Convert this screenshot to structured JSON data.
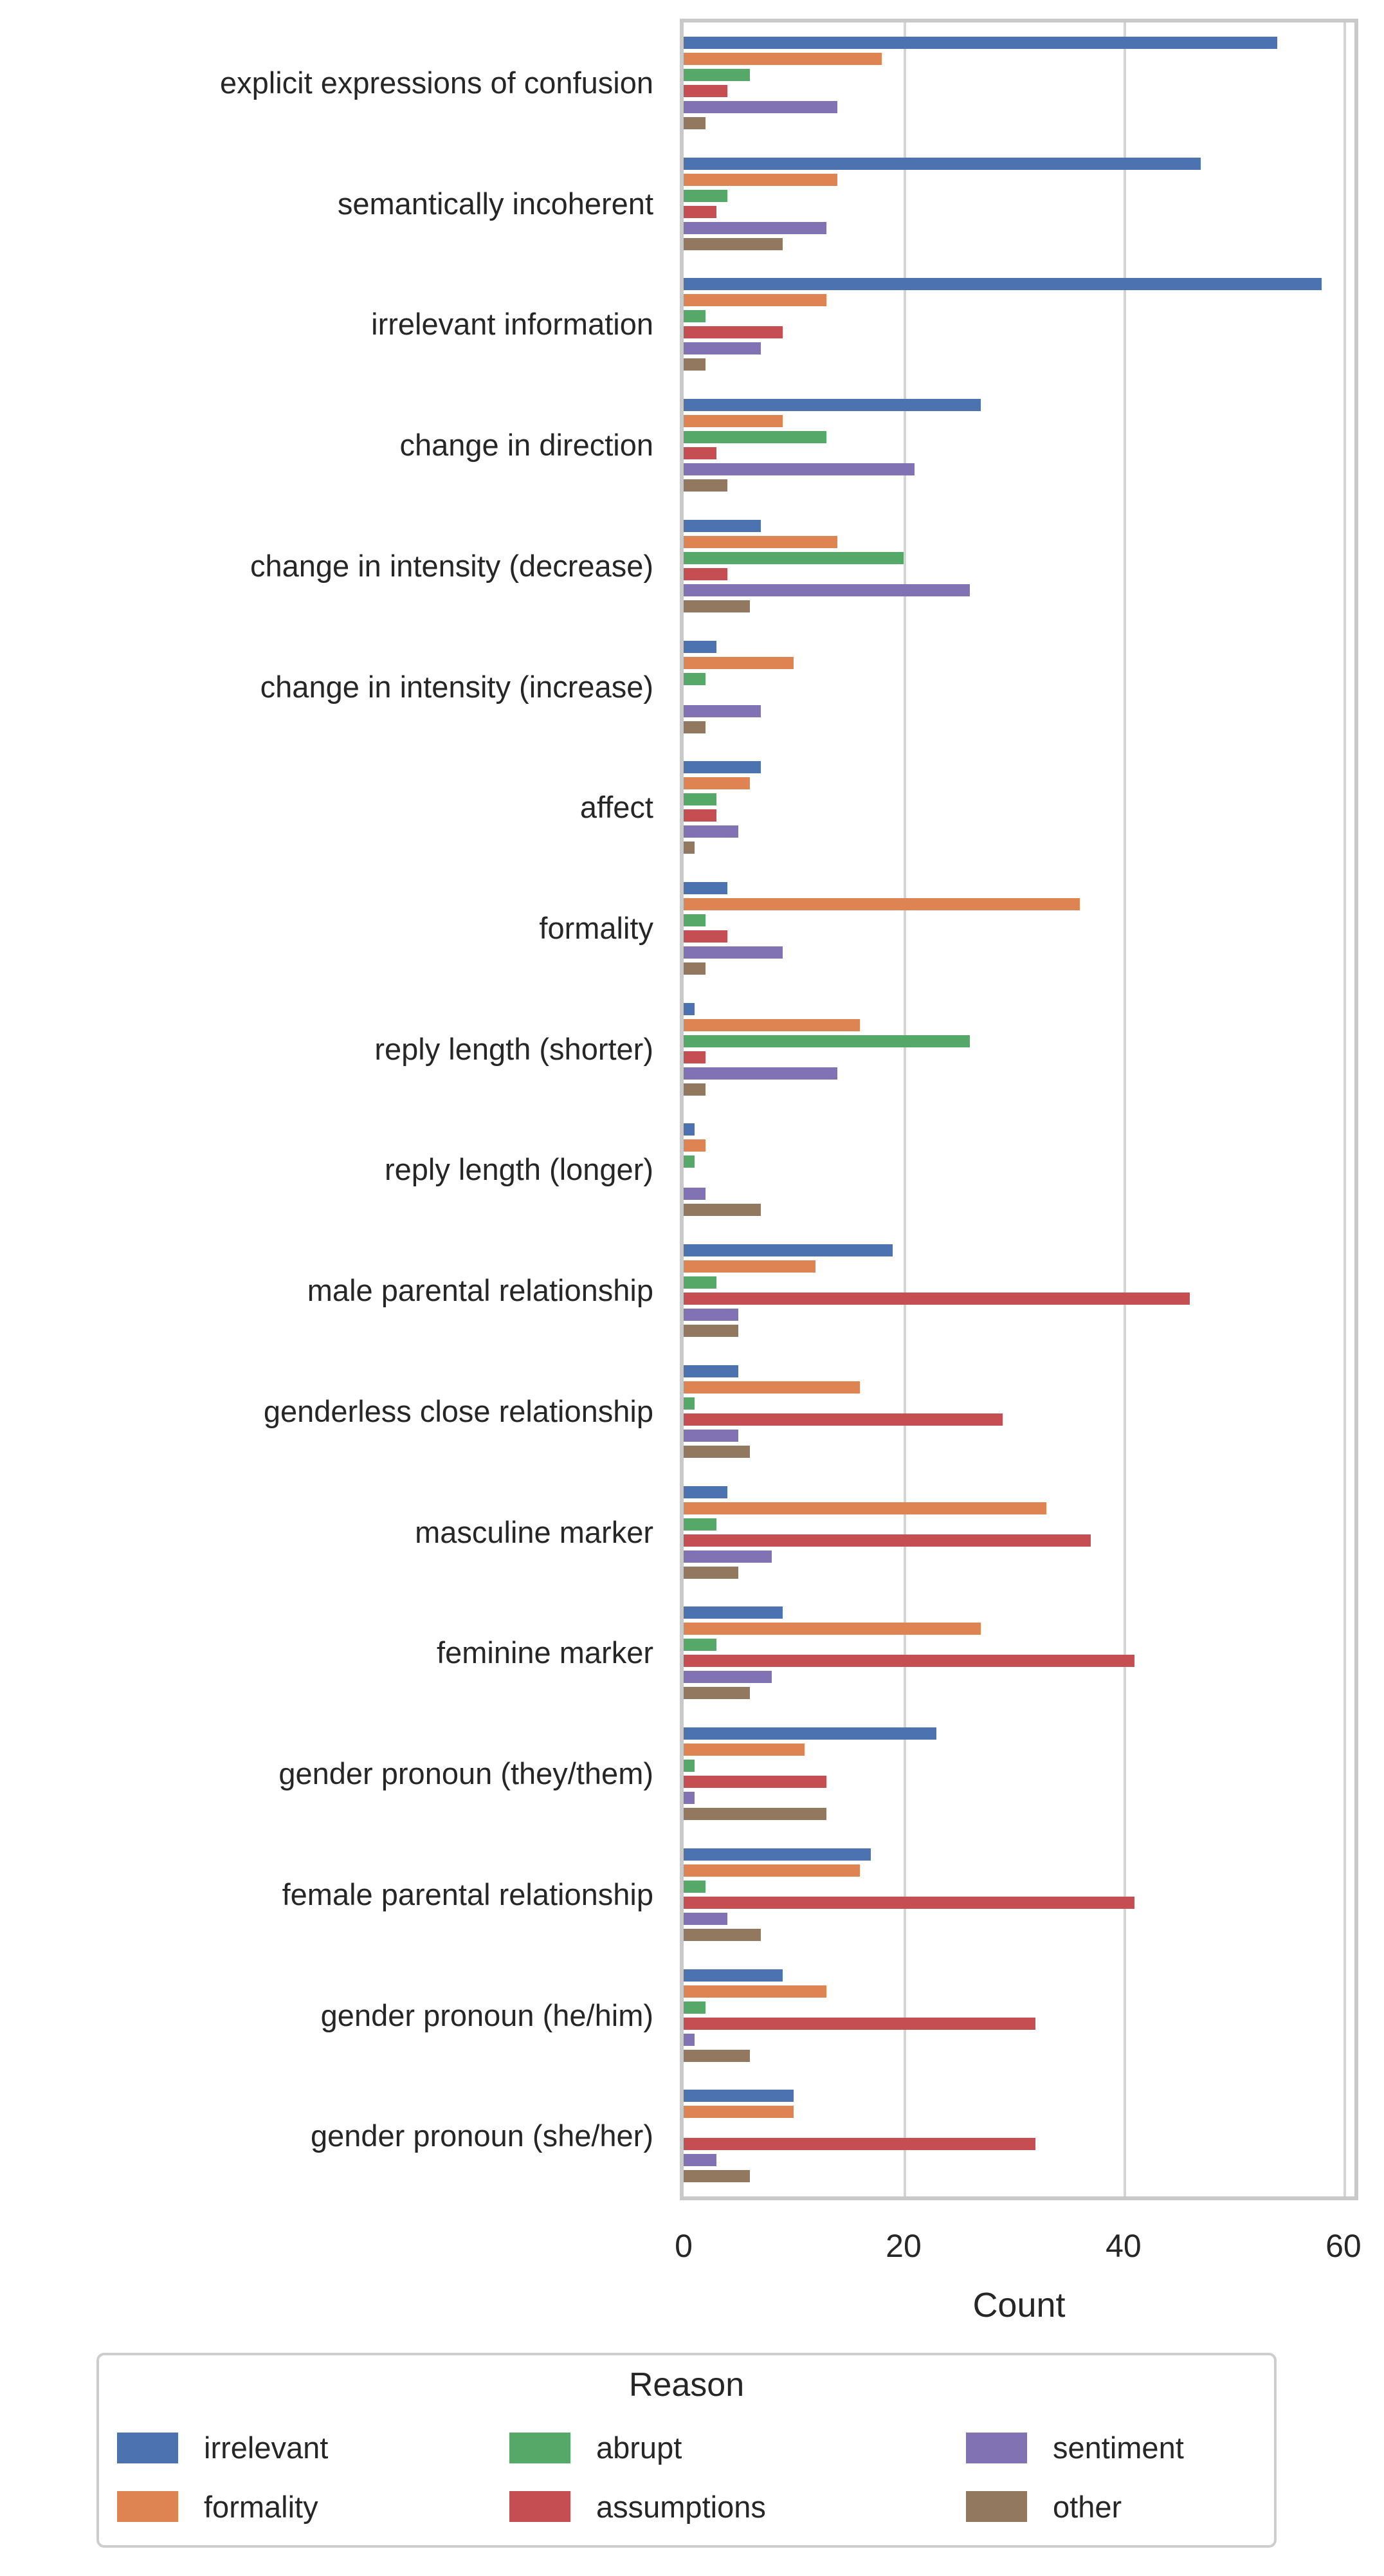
{
  "chart_data": {
    "type": "bar",
    "orientation": "horizontal",
    "title": "",
    "xlabel": "Count",
    "ylabel": "",
    "xlim": [
      0,
      61
    ],
    "xticks": [
      0,
      20,
      40,
      60
    ],
    "grid": "vertical-gridlines-at-20-40-60",
    "legend_title": "Reason",
    "legend_position": "bottom",
    "legend_layout": "2-rows-3-columns-column-major",
    "categories": [
      "explicit expressions of confusion",
      "semantically incoherent",
      "irrelevant information",
      "change in direction",
      "change in intensity (decrease)",
      "change in intensity (increase)",
      "affect",
      "formality",
      "reply length (shorter)",
      "reply length (longer)",
      "male parental relationship",
      "genderless close relationship",
      "masculine marker",
      "feminine marker",
      "gender pronoun (they/them)",
      "female parental relationship",
      "gender pronoun (he/him)",
      "gender pronoun (she/her)"
    ],
    "series": [
      {
        "name": "irrelevant",
        "color": "#4C72B0",
        "values": [
          54,
          47,
          58,
          27,
          7,
          3,
          7,
          4,
          1,
          1,
          19,
          5,
          4,
          9,
          23,
          17,
          9,
          10
        ]
      },
      {
        "name": "formality",
        "color": "#DD8452",
        "values": [
          18,
          14,
          13,
          9,
          14,
          10,
          6,
          36,
          16,
          2,
          12,
          16,
          33,
          27,
          11,
          16,
          13,
          10
        ]
      },
      {
        "name": "abrupt",
        "color": "#55A868",
        "values": [
          6,
          4,
          2,
          13,
          20,
          2,
          3,
          2,
          26,
          1,
          3,
          1,
          3,
          3,
          1,
          2,
          2,
          0
        ]
      },
      {
        "name": "assumptions",
        "color": "#C44E52",
        "values": [
          4,
          3,
          9,
          3,
          4,
          0,
          3,
          4,
          2,
          0,
          46,
          29,
          37,
          41,
          13,
          41,
          32,
          32
        ]
      },
      {
        "name": "sentiment",
        "color": "#8172B3",
        "values": [
          14,
          13,
          7,
          21,
          26,
          7,
          5,
          9,
          14,
          2,
          5,
          5,
          8,
          8,
          1,
          4,
          1,
          3
        ]
      },
      {
        "name": "other",
        "color": "#937860",
        "values": [
          2,
          9,
          2,
          4,
          6,
          2,
          1,
          2,
          2,
          7,
          5,
          6,
          5,
          6,
          13,
          7,
          6,
          6
        ]
      }
    ]
  },
  "style_colors": {
    "gridline": "#d4d4d4",
    "plot_border": "#c9c9c9",
    "legend_border": "#cdcdcd",
    "text": "#262626"
  }
}
